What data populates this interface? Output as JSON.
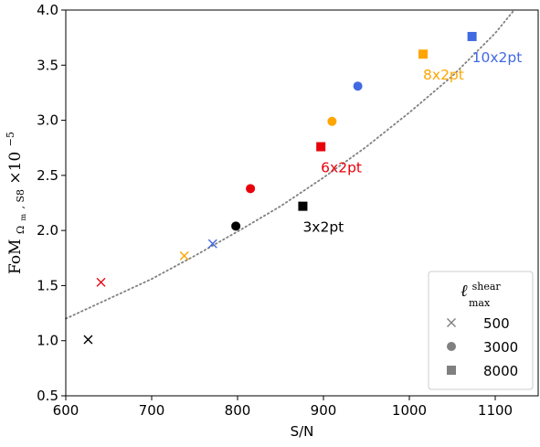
{
  "chart_data": {
    "type": "scatter",
    "xlabel": "S/N",
    "ylabel": {
      "main": "FoM",
      "sub": "Ω",
      "sub_m": "m",
      "sub_rest": ", S8",
      "times": "×10",
      "sup": "−5"
    },
    "xlim": [
      600,
      1150
    ],
    "ylim": [
      0.5,
      4.0
    ],
    "xticks": [
      600,
      700,
      800,
      900,
      1000,
      1100
    ],
    "yticks": [
      0.5,
      1.0,
      1.5,
      2.0,
      2.5,
      3.0,
      3.5,
      4.0
    ],
    "ytick_labels": [
      "0.5",
      "1.0",
      "1.5",
      "2.0",
      "2.5",
      "3.0",
      "3.5",
      "4.0"
    ],
    "colors": {
      "3x2pt": "#000000",
      "6x2pt": "#e8000b",
      "8x2pt": "#ffa500",
      "10x2pt": "#4169e1",
      "fit": "#808080"
    },
    "points": [
      {
        "probe": "3x2pt",
        "lmax": "500",
        "marker": "x",
        "x": 626,
        "y": 1.01
      },
      {
        "probe": "3x2pt",
        "lmax": "3000",
        "marker": "o",
        "x": 798,
        "y": 2.04
      },
      {
        "probe": "3x2pt",
        "lmax": "8000",
        "marker": "s",
        "x": 876,
        "y": 2.22
      },
      {
        "probe": "6x2pt",
        "lmax": "500",
        "marker": "x",
        "x": 641,
        "y": 1.53
      },
      {
        "probe": "6x2pt",
        "lmax": "3000",
        "marker": "o",
        "x": 815,
        "y": 2.38
      },
      {
        "probe": "6x2pt",
        "lmax": "8000",
        "marker": "s",
        "x": 897,
        "y": 2.76
      },
      {
        "probe": "8x2pt",
        "lmax": "500",
        "marker": "x",
        "x": 738,
        "y": 1.77
      },
      {
        "probe": "8x2pt",
        "lmax": "3000",
        "marker": "o",
        "x": 910,
        "y": 2.99
      },
      {
        "probe": "8x2pt",
        "lmax": "8000",
        "marker": "s",
        "x": 1016,
        "y": 3.6
      },
      {
        "probe": "10x2pt",
        "lmax": "500",
        "marker": "x",
        "x": 771,
        "y": 1.88
      },
      {
        "probe": "10x2pt",
        "lmax": "3000",
        "marker": "o",
        "x": 940,
        "y": 3.31
      },
      {
        "probe": "10x2pt",
        "lmax": "8000",
        "marker": "s",
        "x": 1073,
        "y": 3.76
      }
    ],
    "fit_line": {
      "style": "dotted",
      "x": [
        600,
        650,
        700,
        750,
        800,
        850,
        900,
        950,
        1000,
        1050,
        1100,
        1122
      ],
      "y": [
        1.2,
        1.38,
        1.56,
        1.77,
        1.99,
        2.22,
        2.48,
        2.76,
        3.07,
        3.4,
        3.79,
        4.0
      ]
    },
    "annotations": [
      {
        "text": "3x2pt",
        "probe": "3x2pt",
        "x": 876,
        "y": 2.22,
        "anchor": "below-right"
      },
      {
        "text": "6x2pt",
        "probe": "6x2pt",
        "x": 897,
        "y": 2.76,
        "anchor": "below-right"
      },
      {
        "text": "8x2pt",
        "probe": "8x2pt",
        "x": 1016,
        "y": 3.6,
        "anchor": "below-right"
      },
      {
        "text": "10x2pt",
        "probe": "10x2pt",
        "x": 1073,
        "y": 3.76,
        "anchor": "below-right"
      }
    ],
    "legend": {
      "placement": "lower right",
      "title_main": "ℓ",
      "title_sup": "shear",
      "title_sub": "max",
      "marker_color": "#808080",
      "entries": [
        {
          "marker": "x",
          "label": "500"
        },
        {
          "marker": "o",
          "label": "3000"
        },
        {
          "marker": "s",
          "label": "8000"
        }
      ]
    },
    "grid": false
  }
}
